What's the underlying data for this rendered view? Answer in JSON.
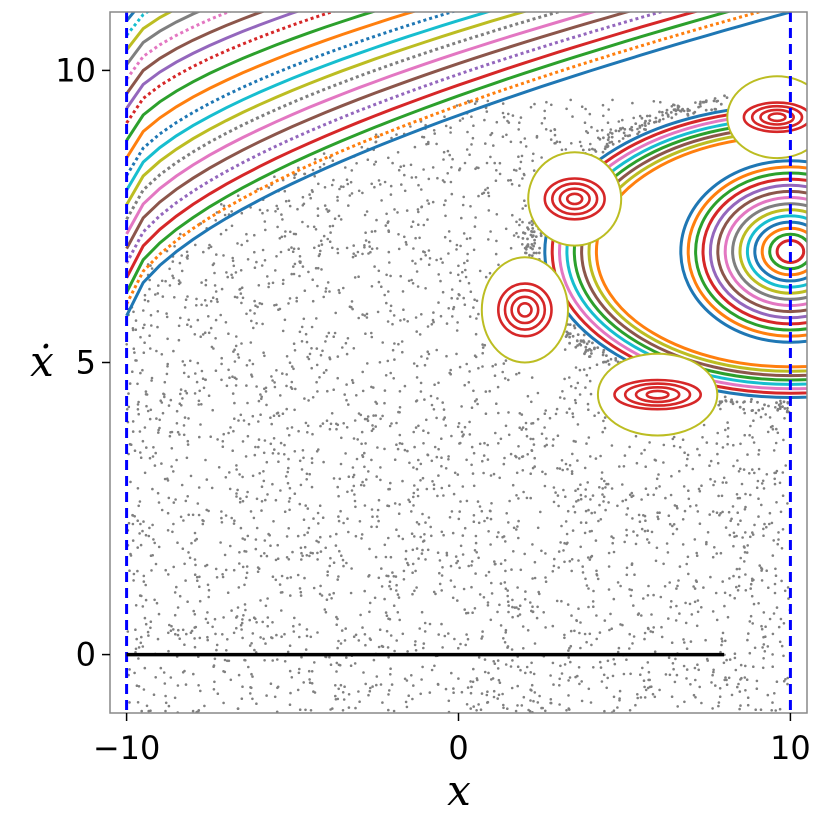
{
  "chart_data": {
    "type": "scatter",
    "title": "",
    "xlabel": "x",
    "ylabel": "ẋ",
    "xlim": [
      -10.5,
      10.5
    ],
    "ylim": [
      -1.0,
      11.0
    ],
    "xticks": [
      -10,
      0,
      10
    ],
    "xtick_labels": [
      "−10",
      "0",
      "10"
    ],
    "yticks": [
      0,
      5,
      10
    ],
    "ytick_labels": [
      "0",
      "5",
      "10"
    ],
    "grid": false,
    "legend": "none",
    "colors": {
      "chaotic": "#808080",
      "boundary": "#0000ff",
      "baseline": "#000000",
      "palette": [
        "#1f77b4",
        "#ff7f0e",
        "#2ca02c",
        "#d62728",
        "#9467bd",
        "#8c564b",
        "#e377c2",
        "#7f7f7f",
        "#bcbd22",
        "#17becf"
      ]
    },
    "boundaries": [
      {
        "x": -10,
        "y_range": [
          -1.0,
          11.0
        ],
        "style": "dashed",
        "color": "#0000ff"
      },
      {
        "x": 10,
        "y_range": [
          -1.0,
          11.0
        ],
        "style": "dashed",
        "color": "#0000ff"
      }
    ],
    "baseline": {
      "x_range": [
        -10,
        8
      ],
      "y": 0,
      "color": "#000000"
    },
    "chaotic_sea": {
      "x_range": [
        -10,
        10
      ],
      "y_range": [
        -1.0,
        9.5
      ],
      "approx_points": 3000
    },
    "island_chain": {
      "main_center": {
        "x": 10.0,
        "y": 6.9
      },
      "main_rx": 7.2,
      "main_ry": 2.0,
      "outer_boundary_ry": 2.5,
      "sub_islands": [
        {
          "x": 3.5,
          "y": 7.8,
          "rx": 0.9,
          "ry": 0.35
        },
        {
          "x": 2.0,
          "y": 5.9,
          "rx": 0.8,
          "ry": 0.45
        },
        {
          "x": 6.0,
          "y": 4.45,
          "rx": 1.3,
          "ry": 0.25
        },
        {
          "x": 9.6,
          "y": 9.2,
          "rx": 1.0,
          "ry": 0.25
        }
      ]
    },
    "rotational_curves": {
      "start_y_at_left": [
        5.8,
        6.0,
        6.2,
        6.45,
        6.7,
        6.95,
        7.2,
        7.45,
        7.7,
        7.95,
        8.2,
        8.5,
        8.8,
        9.1,
        9.35,
        9.6,
        9.85,
        10.1,
        10.35,
        10.6,
        10.85
      ],
      "end_y_at_right": 11.0
    }
  }
}
